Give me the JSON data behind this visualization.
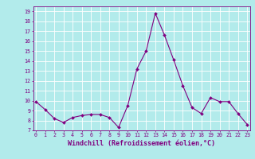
{
  "hours": [
    0,
    1,
    2,
    3,
    4,
    5,
    6,
    7,
    8,
    9,
    10,
    11,
    12,
    13,
    14,
    15,
    16,
    17,
    18,
    19,
    20,
    21,
    22,
    23
  ],
  "temps": [
    9.9,
    9.1,
    8.2,
    7.8,
    8.3,
    8.5,
    8.6,
    8.6,
    8.3,
    7.3,
    9.5,
    13.2,
    15.0,
    18.8,
    16.6,
    14.1,
    11.5,
    9.3,
    8.7,
    10.3,
    9.9,
    9.9,
    8.7,
    7.6
  ],
  "line_color": "#800080",
  "marker_color": "#800080",
  "bg_color": "#b2ebeb",
  "grid_color": "#ffffff",
  "xlabel": "Windchill (Refroidissement éolien,°C)",
  "yticks": [
    7,
    8,
    9,
    10,
    11,
    12,
    13,
    14,
    15,
    16,
    17,
    18,
    19
  ],
  "xticks": [
    0,
    1,
    2,
    3,
    4,
    5,
    6,
    7,
    8,
    9,
    10,
    11,
    12,
    13,
    14,
    15,
    16,
    17,
    18,
    19,
    20,
    21,
    22,
    23
  ],
  "xlim": [
    -0.3,
    23.3
  ],
  "ylim": [
    7,
    19.5
  ]
}
